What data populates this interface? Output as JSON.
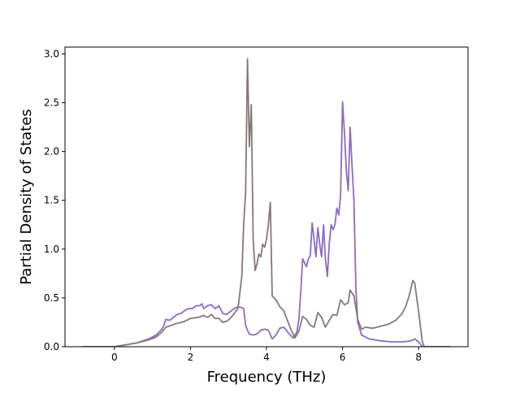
{
  "chart_data": {
    "type": "line",
    "title": "",
    "xlabel": "Frequency (THz)",
    "ylabel": "Partial Density of States",
    "xlim": [
      -1.3,
      9.3
    ],
    "ylim": [
      0.0,
      3.07
    ],
    "xticks": [
      0,
      2,
      4,
      6,
      8
    ],
    "yticks": [
      0.0,
      0.5,
      1.0,
      1.5,
      2.0,
      2.5,
      3.0
    ],
    "xtick_labels": [
      "0",
      "2",
      "4",
      "6",
      "8"
    ],
    "ytick_labels": [
      "0.0",
      "0.5",
      "1.0",
      "1.5",
      "2.0",
      "2.5",
      "3.0"
    ],
    "grid": false,
    "legend": "none",
    "series": [
      {
        "color": "#8c6bbf",
        "points": [
          [
            -0.85,
            0.0
          ],
          [
            0.0,
            0.0
          ],
          [
            0.3,
            0.02
          ],
          [
            0.6,
            0.04
          ],
          [
            0.9,
            0.08
          ],
          [
            1.1,
            0.12
          ],
          [
            1.25,
            0.18
          ],
          [
            1.3,
            0.22
          ],
          [
            1.35,
            0.28
          ],
          [
            1.45,
            0.27
          ],
          [
            1.55,
            0.3
          ],
          [
            1.65,
            0.33
          ],
          [
            1.75,
            0.34
          ],
          [
            1.85,
            0.37
          ],
          [
            1.95,
            0.39
          ],
          [
            2.05,
            0.39
          ],
          [
            2.15,
            0.42
          ],
          [
            2.25,
            0.42
          ],
          [
            2.3,
            0.44
          ],
          [
            2.35,
            0.39
          ],
          [
            2.45,
            0.42
          ],
          [
            2.55,
            0.43
          ],
          [
            2.65,
            0.39
          ],
          [
            2.75,
            0.42
          ],
          [
            2.85,
            0.34
          ],
          [
            2.95,
            0.33
          ],
          [
            3.05,
            0.36
          ],
          [
            3.15,
            0.39
          ],
          [
            3.25,
            0.41
          ],
          [
            3.35,
            0.4
          ],
          [
            3.4,
            0.39
          ],
          [
            3.45,
            0.22
          ],
          [
            3.5,
            0.17
          ],
          [
            3.55,
            0.13
          ],
          [
            3.65,
            0.12
          ],
          [
            3.75,
            0.13
          ],
          [
            3.85,
            0.17
          ],
          [
            3.95,
            0.18
          ],
          [
            4.05,
            0.17
          ],
          [
            4.15,
            0.08
          ],
          [
            4.25,
            0.12
          ],
          [
            4.35,
            0.19
          ],
          [
            4.45,
            0.2
          ],
          [
            4.5,
            0.18
          ],
          [
            4.6,
            0.13
          ],
          [
            4.7,
            0.09
          ],
          [
            4.8,
            0.15
          ],
          [
            4.85,
            0.28
          ],
          [
            4.9,
            0.55
          ],
          [
            4.95,
            0.9
          ],
          [
            5.05,
            0.82
          ],
          [
            5.1,
            0.9
          ],
          [
            5.15,
            0.93
          ],
          [
            5.2,
            1.27
          ],
          [
            5.25,
            1.1
          ],
          [
            5.3,
            0.92
          ],
          [
            5.35,
            1.22
          ],
          [
            5.4,
            1.05
          ],
          [
            5.45,
            0.92
          ],
          [
            5.5,
            1.25
          ],
          [
            5.55,
            0.9
          ],
          [
            5.6,
            0.72
          ],
          [
            5.65,
            1.05
          ],
          [
            5.7,
            1.25
          ],
          [
            5.75,
            1.2
          ],
          [
            5.8,
            1.25
          ],
          [
            5.85,
            1.42
          ],
          [
            5.9,
            1.35
          ],
          [
            5.95,
            1.55
          ],
          [
            6.0,
            2.51
          ],
          [
            6.05,
            2.2
          ],
          [
            6.1,
            1.8
          ],
          [
            6.15,
            1.6
          ],
          [
            6.2,
            2.25
          ],
          [
            6.25,
            1.85
          ],
          [
            6.3,
            1.5
          ],
          [
            6.35,
            0.6
          ],
          [
            6.4,
            0.25
          ],
          [
            6.5,
            0.12
          ],
          [
            6.7,
            0.08
          ],
          [
            7.0,
            0.06
          ],
          [
            7.3,
            0.05
          ],
          [
            7.6,
            0.05
          ],
          [
            7.8,
            0.06
          ],
          [
            7.9,
            0.08
          ],
          [
            8.0,
            0.05
          ],
          [
            8.1,
            0.0
          ],
          [
            8.85,
            0.0
          ]
        ]
      },
      {
        "color": "#877878",
        "points": [
          [
            -0.85,
            0.0
          ],
          [
            0.0,
            0.0
          ],
          [
            0.3,
            0.02
          ],
          [
            0.6,
            0.04
          ],
          [
            0.9,
            0.07
          ],
          [
            1.1,
            0.1
          ],
          [
            1.25,
            0.15
          ],
          [
            1.35,
            0.2
          ],
          [
            1.5,
            0.22
          ],
          [
            1.65,
            0.24
          ],
          [
            1.85,
            0.26
          ],
          [
            2.0,
            0.29
          ],
          [
            2.2,
            0.3
          ],
          [
            2.35,
            0.32
          ],
          [
            2.45,
            0.3
          ],
          [
            2.55,
            0.33
          ],
          [
            2.65,
            0.29
          ],
          [
            2.75,
            0.29
          ],
          [
            2.85,
            0.25
          ],
          [
            2.95,
            0.26
          ],
          [
            3.05,
            0.29
          ],
          [
            3.15,
            0.34
          ],
          [
            3.25,
            0.39
          ],
          [
            3.3,
            0.55
          ],
          [
            3.35,
            0.72
          ],
          [
            3.4,
            1.25
          ],
          [
            3.45,
            1.58
          ],
          [
            3.5,
            2.95
          ],
          [
            3.55,
            2.05
          ],
          [
            3.6,
            2.48
          ],
          [
            3.65,
            1.1
          ],
          [
            3.7,
            0.78
          ],
          [
            3.75,
            0.85
          ],
          [
            3.8,
            0.95
          ],
          [
            3.85,
            0.92
          ],
          [
            3.9,
            1.05
          ],
          [
            3.95,
            1.02
          ],
          [
            4.0,
            1.1
          ],
          [
            4.05,
            1.25
          ],
          [
            4.1,
            1.48
          ],
          [
            4.15,
            0.52
          ],
          [
            4.25,
            0.48
          ],
          [
            4.35,
            0.41
          ],
          [
            4.45,
            0.37
          ],
          [
            4.55,
            0.27
          ],
          [
            4.65,
            0.17
          ],
          [
            4.75,
            0.09
          ],
          [
            4.85,
            0.16
          ],
          [
            4.95,
            0.31
          ],
          [
            5.05,
            0.28
          ],
          [
            5.15,
            0.22
          ],
          [
            5.25,
            0.2
          ],
          [
            5.35,
            0.35
          ],
          [
            5.45,
            0.3
          ],
          [
            5.55,
            0.2
          ],
          [
            5.65,
            0.27
          ],
          [
            5.75,
            0.33
          ],
          [
            5.85,
            0.32
          ],
          [
            5.95,
            0.48
          ],
          [
            6.05,
            0.43
          ],
          [
            6.15,
            0.45
          ],
          [
            6.2,
            0.58
          ],
          [
            6.3,
            0.52
          ],
          [
            6.4,
            0.28
          ],
          [
            6.5,
            0.18
          ],
          [
            6.6,
            0.2
          ],
          [
            6.8,
            0.19
          ],
          [
            7.0,
            0.21
          ],
          [
            7.2,
            0.23
          ],
          [
            7.4,
            0.27
          ],
          [
            7.55,
            0.33
          ],
          [
            7.65,
            0.4
          ],
          [
            7.75,
            0.52
          ],
          [
            7.85,
            0.68
          ],
          [
            7.9,
            0.65
          ],
          [
            8.0,
            0.36
          ],
          [
            8.1,
            0.05
          ],
          [
            8.15,
            0.0
          ],
          [
            8.85,
            0.0
          ]
        ]
      }
    ]
  }
}
